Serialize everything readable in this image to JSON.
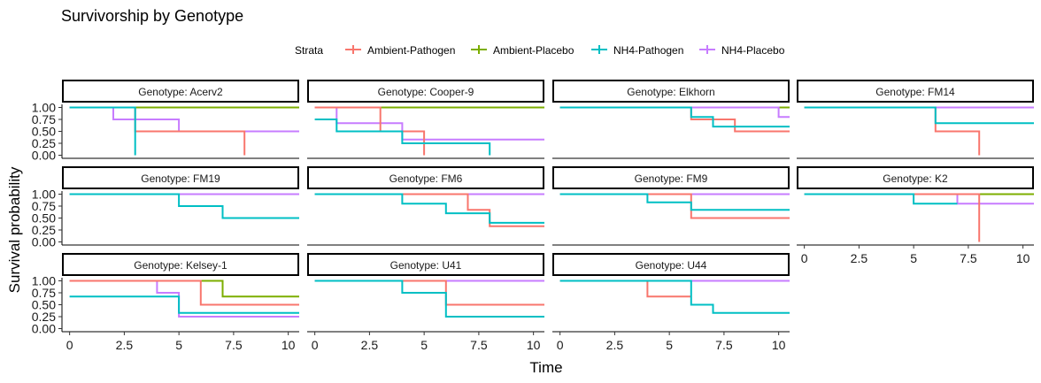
{
  "chart_data": {
    "type": "line",
    "step": "post",
    "title": "Survivorship by Genotype",
    "xlabel": "Time",
    "ylabel": "Survival probability",
    "xlim": [
      -0.35,
      10.5
    ],
    "ylim": [
      0,
      1
    ],
    "x_ticks": [
      0,
      2.5,
      5,
      7.5,
      10
    ],
    "x_tick_labels": [
      "0",
      "2.5",
      "5",
      "7.5",
      "10"
    ],
    "y_ticks": [
      0,
      0.25,
      0.5,
      0.75,
      1
    ],
    "y_tick_labels": [
      "0.00",
      "0.25",
      "0.50",
      "0.75",
      "1.00"
    ],
    "legend": {
      "title": "Strata",
      "position": "top",
      "entries": [
        {
          "name": "Ambient-Pathogen",
          "color": "#F8766D"
        },
        {
          "name": "Ambient-Placebo",
          "color": "#7CAE00"
        },
        {
          "name": "NH4-Pathogen",
          "color": "#00BFC4"
        },
        {
          "name": "NH4-Placebo",
          "color": "#C77CFF"
        }
      ]
    },
    "panels": [
      {
        "strip": "Genotype: Acerv2",
        "series": [
          {
            "strata": "Ambient-Placebo",
            "x": [
              0,
              10.5
            ],
            "y": [
              1,
              1
            ]
          },
          {
            "strata": "NH4-Placebo",
            "x": [
              0,
              2,
              5,
              10.5
            ],
            "y": [
              1,
              0.75,
              0.5,
              0.5
            ]
          },
          {
            "strata": "Ambient-Pathogen",
            "x": [
              0,
              3,
              8
            ],
            "y": [
              1,
              0.5,
              0
            ]
          },
          {
            "strata": "NH4-Pathogen",
            "x": [
              0,
              3
            ],
            "y": [
              1,
              0
            ]
          }
        ]
      },
      {
        "strip": "Genotype: Cooper-9",
        "series": [
          {
            "strata": "Ambient-Placebo",
            "x": [
              0,
              10.5
            ],
            "y": [
              1,
              1
            ]
          },
          {
            "strata": "NH4-Placebo",
            "x": [
              0,
              1,
              4,
              10.5
            ],
            "y": [
              1,
              0.67,
              0.33,
              0.33
            ]
          },
          {
            "strata": "Ambient-Pathogen",
            "x": [
              0,
              3,
              5
            ],
            "y": [
              1,
              0.5,
              0
            ]
          },
          {
            "strata": "NH4-Pathogen",
            "x": [
              0,
              1,
              4,
              8
            ],
            "y": [
              0.75,
              0.5,
              0.25,
              0
            ]
          }
        ]
      },
      {
        "strip": "Genotype: Elkhorn",
        "series": [
          {
            "strata": "Ambient-Placebo",
            "x": [
              0,
              10.5
            ],
            "y": [
              1,
              1
            ]
          },
          {
            "strata": "NH4-Placebo",
            "x": [
              0,
              10,
              10.5
            ],
            "y": [
              1,
              0.8,
              0.8
            ]
          },
          {
            "strata": "Ambient-Pathogen",
            "x": [
              0,
              6,
              8,
              10.5
            ],
            "y": [
              1,
              0.75,
              0.5,
              0.5
            ]
          },
          {
            "strata": "NH4-Pathogen",
            "x": [
              0,
              6,
              7,
              10.5
            ],
            "y": [
              1,
              0.8,
              0.6,
              0.6
            ]
          }
        ]
      },
      {
        "strip": "Genotype: FM14",
        "series": [
          {
            "strata": "Ambient-Placebo",
            "x": [
              0,
              10.5
            ],
            "y": [
              1,
              1
            ]
          },
          {
            "strata": "NH4-Placebo",
            "x": [
              0,
              10.5
            ],
            "y": [
              1,
              1
            ]
          },
          {
            "strata": "Ambient-Pathogen",
            "x": [
              0,
              6,
              8
            ],
            "y": [
              1,
              0.5,
              0
            ]
          },
          {
            "strata": "NH4-Pathogen",
            "x": [
              0,
              6,
              10.5
            ],
            "y": [
              1,
              0.67,
              0.67
            ]
          }
        ]
      },
      {
        "strip": "Genotype: FM19",
        "series": [
          {
            "strata": "Ambient-Placebo",
            "x": [
              0,
              10.5
            ],
            "y": [
              1,
              1
            ]
          },
          {
            "strata": "NH4-Placebo",
            "x": [
              0,
              10.5
            ],
            "y": [
              1,
              1
            ]
          },
          {
            "strata": "NH4-Pathogen",
            "x": [
              0,
              5,
              7,
              10.5
            ],
            "y": [
              1,
              0.75,
              0.5,
              0.5
            ]
          }
        ]
      },
      {
        "strip": "Genotype: FM6",
        "series": [
          {
            "strata": "Ambient-Placebo",
            "x": [
              0,
              10.5
            ],
            "y": [
              1,
              1
            ]
          },
          {
            "strata": "NH4-Placebo",
            "x": [
              0,
              10.5
            ],
            "y": [
              1,
              1
            ]
          },
          {
            "strata": "Ambient-Pathogen",
            "x": [
              0,
              7,
              8,
              10.5
            ],
            "y": [
              1,
              0.67,
              0.33,
              0.33
            ]
          },
          {
            "strata": "NH4-Pathogen",
            "x": [
              0,
              4,
              6,
              8,
              10.5
            ],
            "y": [
              1,
              0.8,
              0.6,
              0.4,
              0.4
            ]
          }
        ]
      },
      {
        "strip": "Genotype: FM9",
        "series": [
          {
            "strata": "Ambient-Placebo",
            "x": [
              0,
              10.5
            ],
            "y": [
              1,
              1
            ]
          },
          {
            "strata": "NH4-Placebo",
            "x": [
              0,
              10.5
            ],
            "y": [
              1,
              1
            ]
          },
          {
            "strata": "Ambient-Pathogen",
            "x": [
              0,
              6,
              10.5
            ],
            "y": [
              1,
              0.5,
              0.5
            ]
          },
          {
            "strata": "NH4-Pathogen",
            "x": [
              0,
              4,
              6,
              10.5
            ],
            "y": [
              1,
              0.83,
              0.67,
              0.67
            ]
          }
        ]
      },
      {
        "strip": "Genotype: K2",
        "series": [
          {
            "strata": "Ambient-Placebo",
            "x": [
              0,
              8,
              10.5
            ],
            "y": [
              1,
              1,
              1
            ]
          },
          {
            "strata": "NH4-Placebo",
            "x": [
              0,
              7,
              10.5
            ],
            "y": [
              1,
              0.8,
              0.8
            ]
          },
          {
            "strata": "Ambient-Pathogen",
            "x": [
              0,
              8
            ],
            "y": [
              1,
              0
            ]
          },
          {
            "strata": "NH4-Pathogen",
            "x": [
              0,
              5,
              7
            ],
            "y": [
              1,
              0.8,
              0.8
            ]
          }
        ]
      },
      {
        "strip": "Genotype: Kelsey-1",
        "series": [
          {
            "strata": "Ambient-Placebo",
            "x": [
              0,
              7,
              10.5
            ],
            "y": [
              1,
              0.67,
              0.67
            ]
          },
          {
            "strata": "NH4-Placebo",
            "x": [
              0,
              4,
              5,
              10.5
            ],
            "y": [
              1,
              0.75,
              0.25,
              0.25
            ]
          },
          {
            "strata": "Ambient-Pathogen",
            "x": [
              0,
              6,
              10.5
            ],
            "y": [
              1,
              0.5,
              0.5
            ]
          },
          {
            "strata": "NH4-Pathogen",
            "x": [
              0,
              5,
              10.5
            ],
            "y": [
              0.67,
              0.33,
              0.33
            ]
          }
        ]
      },
      {
        "strip": "Genotype: U41",
        "series": [
          {
            "strata": "Ambient-Placebo",
            "x": [
              0,
              10.5
            ],
            "y": [
              1,
              1
            ]
          },
          {
            "strata": "NH4-Placebo",
            "x": [
              0,
              10.5
            ],
            "y": [
              1,
              1
            ]
          },
          {
            "strata": "Ambient-Pathogen",
            "x": [
              0,
              6,
              10.5
            ],
            "y": [
              1,
              0.5,
              0.5
            ]
          },
          {
            "strata": "NH4-Pathogen",
            "x": [
              0,
              4,
              6,
              10.5
            ],
            "y": [
              1,
              0.75,
              0.25,
              0.25
            ]
          }
        ]
      },
      {
        "strip": "Genotype: U44",
        "series": [
          {
            "strata": "Ambient-Placebo",
            "x": [
              0,
              10.5
            ],
            "y": [
              1,
              1
            ]
          },
          {
            "strata": "NH4-Placebo",
            "x": [
              0,
              10.5
            ],
            "y": [
              1,
              1
            ]
          },
          {
            "strata": "Ambient-Pathogen",
            "x": [
              0,
              4,
              6
            ],
            "y": [
              1,
              0.67,
              0.67
            ]
          },
          {
            "strata": "NH4-Pathogen",
            "x": [
              0,
              6,
              7,
              10.5
            ],
            "y": [
              1,
              0.5,
              0.33,
              0.33
            ]
          }
        ]
      }
    ]
  }
}
